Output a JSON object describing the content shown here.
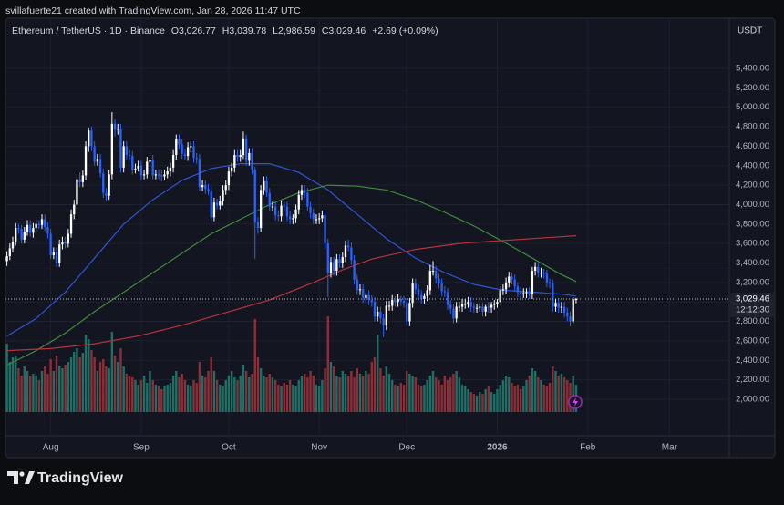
{
  "header": {
    "credit": "svillafuerte21 created with TradingView.com, Jan 28, 2026 11:47 UTC"
  },
  "footer": {
    "brand": "TradingView"
  },
  "chart_data": {
    "type": "candlestick",
    "title": "Ethereum / TetherUS · 1D · Binance",
    "ohlc_labels": [
      "O3,026.77",
      "H3,039.78",
      "L2,986.59",
      "C3,029.46"
    ],
    "change_label": "+2.69 (+0.09%)",
    "currency": "USDT",
    "last_price_label": "3,029.46",
    "countdown": "12:12:30",
    "up_color": "#ffffff",
    "down_color": "#2962ff",
    "volume_up_color": "#1f6f66",
    "volume_down_color": "#8a2f38",
    "grid": true,
    "xlim": [
      -0.5,
      247.5
    ],
    "ylim": [
      1625,
      5915
    ],
    "volume_ylim": [
      0,
      432
    ],
    "xticks": [
      {
        "value": 15,
        "label": "Aug"
      },
      {
        "value": 46,
        "label": "Sep"
      },
      {
        "value": 76,
        "label": "Oct"
      },
      {
        "value": 107,
        "label": "Nov"
      },
      {
        "value": 137,
        "label": "Dec"
      },
      {
        "value": 168,
        "label": "2026"
      },
      {
        "value": 199,
        "label": "Feb"
      },
      {
        "value": 227,
        "label": "Mar"
      }
    ],
    "yticks": [
      {
        "value": 2000,
        "label": "2,000.00"
      },
      {
        "value": 2200,
        "label": "2,200.00"
      },
      {
        "value": 2400,
        "label": "2,400.00"
      },
      {
        "value": 2600,
        "label": "2,600.00"
      },
      {
        "value": 2800,
        "label": "2,800.00"
      },
      {
        "value": 3000,
        "label": "3,000.00"
      },
      {
        "value": 3200,
        "label": "3,200.00"
      },
      {
        "value": 3400,
        "label": "3,400.00"
      },
      {
        "value": 3600,
        "label": "3,600.00"
      },
      {
        "value": 3800,
        "label": "3,800.00"
      },
      {
        "value": 4000,
        "label": "4,000.00"
      },
      {
        "value": 4200,
        "label": "4,200.00"
      },
      {
        "value": 4400,
        "label": "4,400.00"
      },
      {
        "value": 4600,
        "label": "4,600.00"
      },
      {
        "value": 4800,
        "label": "4,800.00"
      },
      {
        "value": 5000,
        "label": "5,000.00"
      },
      {
        "value": 5200,
        "label": "5,200.00"
      },
      {
        "value": 5400,
        "label": "5,400.00"
      }
    ],
    "open": [
      3420,
      3470,
      3550,
      3620,
      3760,
      3750,
      3640,
      3720,
      3790,
      3710,
      3760,
      3800,
      3790,
      3850,
      3770,
      3700,
      3480,
      3510,
      3400,
      3590,
      3620,
      3600,
      3700,
      3900,
      4000,
      4260,
      4230,
      4300,
      4600,
      4760,
      4600,
      4440,
      4470,
      4320,
      4120,
      4090,
      4310,
      4830,
      4770,
      4780,
      4380,
      4600,
      4510,
      4500,
      4360,
      4370,
      4400,
      4300,
      4310,
      4440,
      4460,
      4300,
      4310,
      4300,
      4290,
      4310,
      4340,
      4380,
      4510,
      4670,
      4620,
      4520,
      4500,
      4590,
      4600,
      4480,
      4470,
      4180,
      4200,
      4160,
      4140,
      3870,
      4020,
      3990,
      4040,
      4150,
      4200,
      4340,
      4380,
      4510,
      4490,
      4510,
      4680,
      4450,
      4530,
      4360,
      3820,
      3760,
      4150,
      4240,
      4120,
      3980,
      3980,
      3890,
      3880,
      3990,
      3980,
      3880,
      3850,
      3860,
      3950,
      4100,
      4150,
      4120,
      3980,
      3910,
      3850,
      3850,
      3860,
      3890,
      3600,
      3300,
      3410,
      3320,
      3440,
      3400,
      3460,
      3580,
      3560,
      3430,
      3230,
      3120,
      3130,
      3040,
      3070,
      3020,
      3000,
      2850,
      2900,
      2830,
      2760,
      2960,
      2960,
      3020,
      3000,
      3030,
      3010,
      2990,
      2800,
      2990,
      3190,
      3130,
      3070,
      3030,
      3060,
      3120,
      3320,
      3320,
      3240,
      3190,
      3110,
      3100,
      2970,
      2930,
      2830,
      2950,
      2950,
      2980,
      2980,
      3000,
      2950,
      2940,
      2940,
      2950,
      2900,
      2950,
      2940,
      2970,
      2980,
      3000,
      3120,
      3130,
      3200,
      3260,
      3230,
      3160,
      3100,
      3090,
      3090,
      3100,
      3080,
      3320,
      3360,
      3300,
      3300,
      3290,
      3200,
      3190,
      2950,
      2990,
      2940,
      2950,
      2890,
      2850,
      2800,
      3026.77
    ],
    "high": [
      3520,
      3600,
      3670,
      3810,
      3800,
      3790,
      3770,
      3840,
      3840,
      3810,
      3850,
      3840,
      3900,
      3900,
      3820,
      3750,
      3560,
      3560,
      3640,
      3670,
      3670,
      3750,
      3950,
      4050,
      4310,
      4330,
      4350,
      4650,
      4790,
      4800,
      4650,
      4520,
      4520,
      4370,
      4170,
      4360,
      4950,
      4880,
      4830,
      4830,
      4650,
      4650,
      4560,
      4550,
      4420,
      4450,
      4450,
      4360,
      4490,
      4510,
      4510,
      4360,
      4360,
      4350,
      4360,
      4390,
      4430,
      4560,
      4720,
      4720,
      4680,
      4570,
      4640,
      4650,
      4650,
      4530,
      4520,
      4250,
      4250,
      4210,
      4190,
      4070,
      4060,
      4090,
      4200,
      4250,
      4390,
      4430,
      4560,
      4560,
      4560,
      4750,
      4720,
      4580,
      4580,
      4390,
      3870,
      4200,
      4290,
      4290,
      4170,
      4030,
      4030,
      3940,
      4040,
      4040,
      4030,
      3930,
      3900,
      4000,
      4150,
      4200,
      4200,
      4170,
      4030,
      3960,
      3900,
      3910,
      3940,
      3940,
      3650,
      3460,
      3460,
      3490,
      3490,
      3510,
      3630,
      3640,
      3610,
      3480,
      3280,
      3180,
      3180,
      3100,
      3120,
      3070,
      3050,
      2950,
      2950,
      2880,
      3010,
      3010,
      3070,
      3060,
      3080,
      3060,
      3060,
      3040,
      3040,
      3240,
      3240,
      3180,
      3120,
      3090,
      3170,
      3380,
      3420,
      3370,
      3290,
      3240,
      3160,
      3140,
      3020,
      2980,
      3000,
      3000,
      3030,
      3030,
      3050,
      3050,
      2990,
      2980,
      2990,
      2990,
      2970,
      3000,
      3000,
      3020,
      3030,
      3160,
      3180,
      3250,
      3310,
      3300,
      3280,
      3200,
      3150,
      3140,
      3140,
      3150,
      3360,
      3410,
      3400,
      3350,
      3340,
      3330,
      3240,
      3230,
      3030,
      3040,
      3000,
      3000,
      2940,
      2900,
      3050,
      3039.78
    ],
    "low": [
      3370,
      3430,
      3510,
      3580,
      3700,
      3600,
      3600,
      3680,
      3670,
      3660,
      3720,
      3750,
      3750,
      3730,
      3650,
      3440,
      3440,
      3360,
      3360,
      3540,
      3550,
      3560,
      3660,
      3850,
      3960,
      4180,
      4180,
      4250,
      4540,
      4550,
      4400,
      4400,
      4280,
      4070,
      4040,
      4050,
      4260,
      4700,
      4720,
      4330,
      4330,
      4460,
      4450,
      4310,
      4320,
      4340,
      4250,
      4260,
      4270,
      4390,
      4260,
      4260,
      4260,
      4240,
      4250,
      4270,
      4290,
      4330,
      4460,
      4570,
      4470,
      4460,
      4450,
      4540,
      4430,
      4420,
      4140,
      4140,
      4110,
      4100,
      3820,
      3830,
      3950,
      3950,
      3990,
      4100,
      4150,
      4290,
      4330,
      4440,
      4440,
      4470,
      4400,
      4400,
      4310,
      3440,
      3700,
      3720,
      4100,
      4080,
      3930,
      3930,
      3840,
      3830,
      3830,
      3930,
      3830,
      3800,
      3800,
      3810,
      3900,
      4050,
      4070,
      3930,
      3860,
      3800,
      3800,
      3800,
      3820,
      3550,
      3050,
      3250,
      3270,
      3270,
      3350,
      3350,
      3410,
      3520,
      3380,
      3180,
      3070,
      3070,
      2990,
      3000,
      2970,
      2950,
      2800,
      2800,
      2780,
      2640,
      2710,
      2910,
      2910,
      2950,
      2950,
      2960,
      2940,
      2760,
      2750,
      2940,
      3080,
      3020,
      2980,
      2980,
      3010,
      3070,
      3270,
      3190,
      3140,
      3060,
      3050,
      2920,
      2880,
      2780,
      2790,
      2900,
      2900,
      2930,
      2940,
      2900,
      2890,
      2890,
      2900,
      2850,
      2850,
      2890,
      2890,
      2920,
      2940,
      2960,
      3070,
      3080,
      3150,
      3180,
      3110,
      3050,
      3040,
      3040,
      3040,
      3030,
      3030,
      3270,
      3250,
      3250,
      3240,
      3150,
      3140,
      2900,
      2900,
      2890,
      2890,
      2840,
      2800,
      2750,
      2780,
      2986.59
    ],
    "close": [
      3470,
      3550,
      3620,
      3760,
      3750,
      3640,
      3720,
      3790,
      3710,
      3760,
      3800,
      3790,
      3850,
      3770,
      3700,
      3480,
      3510,
      3400,
      3590,
      3620,
      3600,
      3700,
      3900,
      4000,
      4260,
      4230,
      4300,
      4600,
      4760,
      4600,
      4440,
      4470,
      4320,
      4120,
      4090,
      4310,
      4830,
      4770,
      4780,
      4380,
      4600,
      4510,
      4500,
      4360,
      4370,
      4400,
      4300,
      4310,
      4440,
      4460,
      4300,
      4310,
      4300,
      4290,
      4310,
      4340,
      4380,
      4510,
      4670,
      4620,
      4520,
      4500,
      4590,
      4600,
      4480,
      4470,
      4180,
      4200,
      4160,
      4140,
      3870,
      4020,
      3990,
      4040,
      4150,
      4200,
      4340,
      4380,
      4510,
      4490,
      4510,
      4680,
      4450,
      4530,
      4360,
      3820,
      3760,
      4150,
      4240,
      4120,
      3980,
      3980,
      3890,
      3880,
      3990,
      3980,
      3880,
      3850,
      3860,
      3950,
      4100,
      4150,
      4120,
      3980,
      3910,
      3850,
      3850,
      3860,
      3890,
      3600,
      3300,
      3410,
      3320,
      3440,
      3400,
      3460,
      3580,
      3560,
      3430,
      3230,
      3120,
      3130,
      3040,
      3070,
      3020,
      3000,
      2850,
      2900,
      2830,
      2760,
      2960,
      2960,
      3020,
      3000,
      3030,
      3010,
      2990,
      2800,
      2990,
      3190,
      3130,
      3070,
      3030,
      3060,
      3120,
      3320,
      3320,
      3240,
      3190,
      3110,
      3100,
      2970,
      2930,
      2830,
      2950,
      2950,
      2980,
      2980,
      3000,
      2950,
      2940,
      2940,
      2950,
      2900,
      2950,
      2940,
      2970,
      2980,
      3000,
      3120,
      3130,
      3200,
      3260,
      3230,
      3160,
      3100,
      3090,
      3090,
      3100,
      3080,
      3320,
      3360,
      3300,
      3300,
      3290,
      3200,
      3190,
      2950,
      2990,
      2940,
      2950,
      2890,
      2850,
      2800,
      3026.77,
      3029.46
    ],
    "volume": [
      75,
      55,
      60,
      62,
      48,
      40,
      50,
      45,
      40,
      42,
      40,
      35,
      45,
      50,
      42,
      58,
      45,
      62,
      50,
      48,
      52,
      55,
      60,
      66,
      70,
      60,
      65,
      85,
      80,
      68,
      60,
      45,
      55,
      58,
      50,
      48,
      88,
      62,
      55,
      70,
      50,
      42,
      40,
      38,
      35,
      30,
      35,
      40,
      32,
      45,
      35,
      30,
      28,
      25,
      28,
      30,
      32,
      40,
      45,
      38,
      42,
      35,
      30,
      28,
      35,
      32,
      55,
      40,
      38,
      45,
      60,
      45,
      35,
      30,
      28,
      35,
      40,
      45,
      38,
      35,
      40,
      52,
      45,
      38,
      42,
      102,
      60,
      48,
      40,
      38,
      42,
      38,
      35,
      30,
      28,
      32,
      30,
      35,
      30,
      28,
      35,
      40,
      42,
      38,
      45,
      40,
      30,
      28,
      35,
      48,
      105,
      55,
      50,
      40,
      38,
      45,
      42,
      40,
      45,
      38,
      48,
      42,
      40,
      45,
      42,
      55,
      60,
      85,
      48,
      40,
      50,
      42,
      35,
      30,
      28,
      32,
      30,
      45,
      42,
      40,
      38,
      30,
      28,
      30,
      35,
      40,
      45,
      38,
      35,
      30,
      40,
      35,
      38,
      42,
      45,
      38,
      30,
      28,
      25,
      22,
      20,
      18,
      22,
      20,
      25,
      28,
      22,
      20,
      25,
      30,
      35,
      40,
      38,
      32,
      28,
      30,
      25,
      28,
      35,
      40,
      48,
      45,
      38,
      35,
      30,
      28,
      32,
      50,
      45,
      40,
      42,
      38,
      35,
      32,
      40,
      30
    ],
    "moving_averages": [
      {
        "color": "#2f54d4",
        "x": [
          0,
          10,
          20,
          30,
          40,
          50,
          60,
          70,
          80,
          90,
          100,
          110,
          120,
          130,
          140,
          150,
          160,
          170,
          180,
          190,
          195
        ],
        "values": [
          2650,
          2830,
          3100,
          3450,
          3800,
          4050,
          4250,
          4370,
          4420,
          4420,
          4330,
          4150,
          3900,
          3650,
          3450,
          3300,
          3180,
          3120,
          3100,
          3080,
          3060
        ]
      },
      {
        "color": "#3f8a3a",
        "x": [
          0,
          10,
          20,
          30,
          40,
          50,
          60,
          70,
          80,
          90,
          100,
          110,
          120,
          130,
          140,
          150,
          160,
          170,
          180,
          190,
          195
        ],
        "values": [
          2350,
          2500,
          2680,
          2900,
          3100,
          3300,
          3500,
          3700,
          3850,
          4000,
          4120,
          4200,
          4190,
          4150,
          4050,
          3920,
          3780,
          3620,
          3450,
          3280,
          3210
        ]
      },
      {
        "color": "#b8323c",
        "x": [
          0,
          15,
          30,
          45,
          60,
          75,
          90,
          105,
          115,
          125,
          140,
          155,
          170,
          185,
          195
        ],
        "values": [
          2500,
          2520,
          2570,
          2650,
          2760,
          2890,
          3020,
          3200,
          3330,
          3440,
          3540,
          3600,
          3630,
          3660,
          3680
        ]
      }
    ]
  }
}
